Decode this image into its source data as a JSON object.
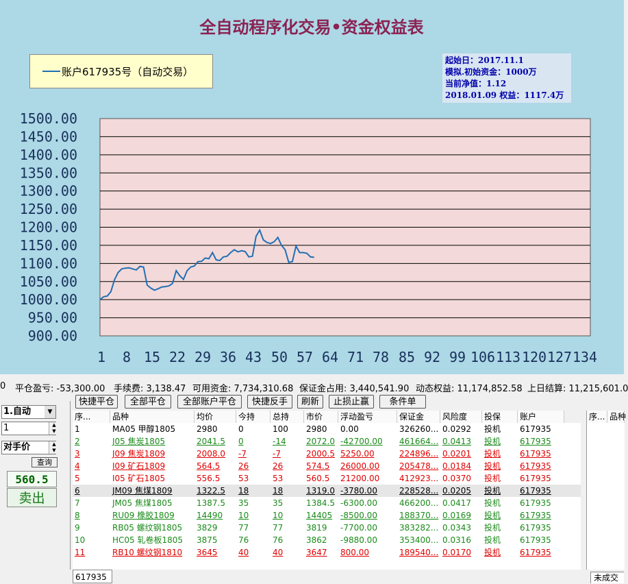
{
  "chart": {
    "title": "全自动程序化交易•资金权益表",
    "legend": "账户617935号（自动交易）",
    "info": {
      "start_date": "起始日：2017.11.1",
      "initial_capital": "模拟.初始资金：1000万",
      "net_value": "当前净值：1.12",
      "equity": "2018.01.09 权益：1117.4万"
    },
    "colors": {
      "background": "#add8e6",
      "plot_bg": "#f3d9d9",
      "line": "#1f6fb5",
      "title": "#8b2252"
    }
  },
  "chart_data": {
    "type": "line",
    "title": "全自动程序化交易•资金权益表",
    "ylim": [
      900,
      1500
    ],
    "yticks": [
      "1500.00",
      "1450.00",
      "1400.00",
      "1350.00",
      "1300.00",
      "1250.00",
      "1200.00",
      "1150.00",
      "1100.00",
      "1050.00",
      "1000.00",
      "950.00",
      "900.00"
    ],
    "xticks": [
      "1",
      "8",
      "15",
      "22",
      "29",
      "36",
      "43",
      "50",
      "57",
      "64",
      "71",
      "78",
      "85",
      "92",
      "99",
      "106",
      "113",
      "120",
      "127",
      "134"
    ],
    "xlim": [
      1,
      134
    ],
    "grid": true,
    "legend_position": "top-left",
    "series": [
      {
        "name": "账户617935号（自动交易）",
        "x": [
          1,
          2,
          3,
          4,
          5,
          6,
          7,
          8,
          9,
          10,
          11,
          12,
          13,
          14,
          15,
          16,
          17,
          18,
          19,
          20,
          21,
          22,
          23,
          24,
          25,
          26,
          27,
          28,
          29,
          30,
          31,
          32,
          33,
          34,
          35,
          36,
          37,
          38,
          39,
          40,
          41,
          42,
          43,
          44,
          45,
          46,
          47,
          48,
          49,
          50,
          51,
          52,
          53,
          54,
          55,
          56,
          57,
          58,
          59,
          60
        ],
        "values": [
          1000,
          1008,
          1010,
          1022,
          1055,
          1075,
          1085,
          1087,
          1088,
          1085,
          1082,
          1092,
          1090,
          1040,
          1032,
          1026,
          1030,
          1035,
          1036,
          1038,
          1045,
          1080,
          1066,
          1056,
          1080,
          1090,
          1093,
          1105,
          1106,
          1115,
          1113,
          1130,
          1110,
          1108,
          1118,
          1120,
          1130,
          1138,
          1132,
          1135,
          1133,
          1118,
          1120,
          1175,
          1192,
          1165,
          1158,
          1155,
          1160,
          1172,
          1150,
          1138,
          1103,
          1105,
          1148,
          1130,
          1130,
          1128,
          1118,
          1117
        ]
      }
    ]
  },
  "status": {
    "pre": "0",
    "close_pnl": "平仓盈亏: -53,300.00",
    "fee": "手续费: 3,138.47",
    "available": "可用资金: 7,734,310.68",
    "margin": "保证金占用: 3,440,541.90",
    "dynamic": "动态权益: 11,174,852.58",
    "prev_settle": "上日结算: 11,215,601.0"
  },
  "toolbar": [
    "快捷平仓",
    "全部平仓",
    "全部账户平仓",
    "快捷反手",
    "刷新",
    "止损止赢",
    "条件单"
  ],
  "left_panel": {
    "mode": "1.自动",
    "qty": "1",
    "price_type": "对手价",
    "query": "查询",
    "price": "560.5",
    "action": "卖出"
  },
  "table": {
    "headers": [
      "序...",
      "品种",
      "均价",
      "今持",
      "总持",
      "市价",
      "浮动盈亏",
      "保证金",
      "风险度",
      "投保",
      "账户"
    ],
    "rows": [
      {
        "c": [
          "1",
          "MA05 甲醇1805",
          "2980",
          "0",
          "100",
          "2980",
          "0.00",
          "326260...",
          "0.0292",
          "投机",
          "617935"
        ],
        "style": "normal"
      },
      {
        "c": [
          "2",
          "J05 焦炭1805",
          "2041.5",
          "0",
          "-14",
          "2072.0",
          "-42700.00",
          "461664...",
          "0.0413",
          "投机",
          "617935"
        ],
        "style": "green"
      },
      {
        "c": [
          "3",
          "J09 焦炭1809",
          "2008.0",
          "-7",
          "-7",
          "2000.5",
          "5250.00",
          "224896...",
          "0.0201",
          "投机",
          "617935"
        ],
        "style": "red"
      },
      {
        "c": [
          "4",
          "I09 矿石1809",
          "564.5",
          "26",
          "26",
          "574.5",
          "26000.00",
          "205478...",
          "0.0184",
          "投机",
          "617935"
        ],
        "style": "red"
      },
      {
        "c": [
          "5",
          "I05 矿石1805",
          "556.5",
          "53",
          "53",
          "560.5",
          "21200.00",
          "412923...",
          "0.0370",
          "投机",
          "617935"
        ],
        "style": "redplain"
      },
      {
        "c": [
          "6",
          "JM09 焦煤1809",
          "1322.5",
          "18",
          "18",
          "1319.0",
          "-3780.00",
          "228528...",
          "0.0205",
          "投机",
          "617935"
        ],
        "style": "selected"
      },
      {
        "c": [
          "7",
          "JM05 焦煤1805",
          "1387.5",
          "35",
          "35",
          "1384.5",
          "-6300.00",
          "466200...",
          "0.0417",
          "投机",
          "617935"
        ],
        "style": "greenplain"
      },
      {
        "c": [
          "8",
          "RU09 橡胶1809",
          "14490",
          "10",
          "10",
          "14405",
          "-8500.00",
          "188370...",
          "0.0169",
          "投机",
          "617935"
        ],
        "style": "green"
      },
      {
        "c": [
          "9",
          "RB05 螺纹钢1805",
          "3829",
          "77",
          "77",
          "3819",
          "-7700.00",
          "383282...",
          "0.0343",
          "投机",
          "617935"
        ],
        "style": "greenplain"
      },
      {
        "c": [
          "10",
          "HC05 轧卷板1805",
          "3875",
          "76",
          "76",
          "3862",
          "-9880.00",
          "353400...",
          "0.0316",
          "投机",
          "617935"
        ],
        "style": "greenplain"
      },
      {
        "c": [
          "11",
          "RB10 螺纹钢1810",
          "3645",
          "40",
          "40",
          "3647",
          "800.00",
          "189540...",
          "0.0170",
          "投机",
          "617935"
        ],
        "style": "red"
      }
    ]
  },
  "right_panel": {
    "headers": [
      "序...",
      "品种"
    ]
  },
  "bottom": {
    "account_tab": "617935",
    "pending_tab": "未成交"
  }
}
